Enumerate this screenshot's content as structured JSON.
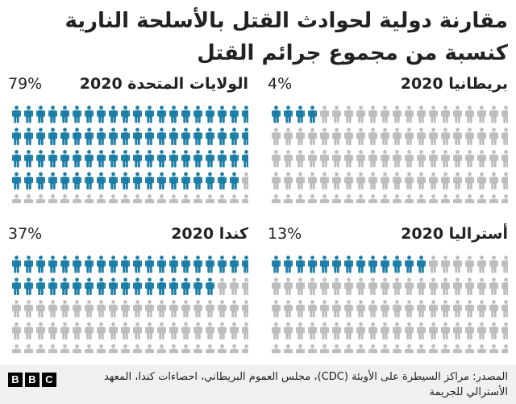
{
  "title": "مقارنة دولية لحوادث القتل بالأسلحة النارية كنسبة من مجموع جرائم القتل",
  "colors": {
    "highlight": "#1c7ea6",
    "rest": "#bdbdbd",
    "text": "#222222"
  },
  "chart_data": [
    {
      "type": "pictogram",
      "title": "الولايات المتحدة 2020",
      "percent_label": "79%",
      "value": 79,
      "total_icons": 100,
      "position": "top-left"
    },
    {
      "type": "pictogram",
      "title": "بريطانيا 2020",
      "percent_label": "4%",
      "value": 4,
      "total_icons": 100,
      "position": "top-right"
    },
    {
      "type": "pictogram",
      "title": "كندا 2020",
      "percent_label": "37%",
      "value": 37,
      "total_icons": 100,
      "position": "bottom-left"
    },
    {
      "type": "pictogram",
      "title": "أستراليا 2020",
      "percent_label": "13%",
      "value": 13,
      "total_icons": 100,
      "position": "bottom-right"
    }
  ],
  "footer": {
    "logo": [
      "B",
      "B",
      "C"
    ],
    "source": "المصدر: مراكز السيطرة على الأوبئة (CDC)، مجلس العموم البريطاني، احصاءات كندا، المعهد الأسترالي للجريمة"
  }
}
